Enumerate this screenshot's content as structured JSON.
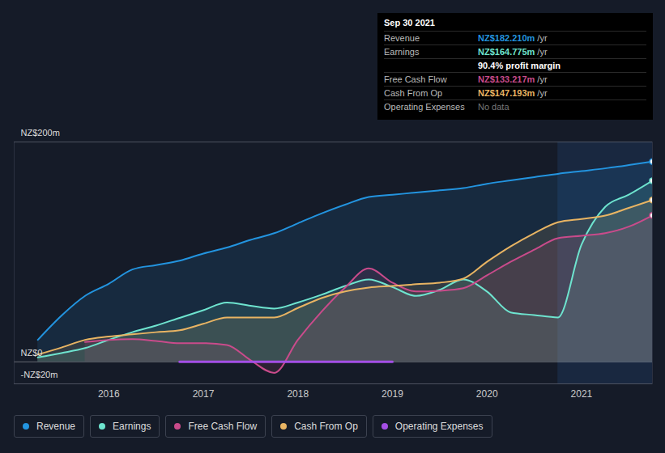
{
  "chart_data": {
    "type": "line",
    "x": [
      2015.25,
      2015.5,
      2015.75,
      2016.0,
      2016.25,
      2016.5,
      2016.75,
      2017.0,
      2017.25,
      2017.5,
      2017.75,
      2018.0,
      2018.25,
      2018.5,
      2018.75,
      2019.0,
      2019.25,
      2019.5,
      2019.75,
      2020.0,
      2020.25,
      2020.5,
      2020.75,
      2021.0,
      2021.25,
      2021.5,
      2021.75
    ],
    "series": [
      {
        "name": "Revenue",
        "color": "#2394df",
        "values": [
          20,
          42,
          60,
          71,
          84,
          88,
          92,
          98.5,
          104,
          111,
          117,
          126,
          135,
          143,
          150,
          152,
          154,
          156,
          158,
          162,
          165,
          168,
          171,
          173.5,
          176,
          179,
          182.21
        ]
      },
      {
        "name": "Earnings",
        "color": "#6ee4cf",
        "values": [
          4,
          8,
          12.5,
          20,
          27,
          33,
          40,
          47,
          54,
          51,
          48.5,
          54,
          61,
          69,
          75,
          68,
          60,
          65.5,
          75,
          64,
          45,
          42.6,
          40.4,
          106.6,
          141,
          152,
          164.775
        ]
      },
      {
        "name": "Free Cash Flow",
        "color": "#c94b8b",
        "values": [
          null,
          null,
          18,
          20,
          20.6,
          19,
          17,
          17,
          15.4,
          1.5,
          -10,
          20,
          45.6,
          67.6,
          85,
          72,
          64,
          64.7,
          67,
          78.7,
          91,
          102,
          112.5,
          114.7,
          117,
          123,
          133.217
        ]
      },
      {
        "name": "Cash From Op",
        "color": "#e8b463",
        "values": [
          6.6,
          13,
          20,
          23,
          25,
          27,
          28.7,
          34.6,
          40.4,
          40.4,
          40.4,
          49,
          58,
          64,
          67.6,
          69,
          70.6,
          72,
          75.7,
          91,
          105,
          117,
          127,
          130,
          133,
          140,
          147.193
        ]
      },
      {
        "name": "Operating Expenses",
        "color": "#a44fe6",
        "values": [
          null,
          null,
          null,
          null,
          null,
          null,
          0,
          0,
          0,
          0,
          0,
          0,
          0,
          0,
          0,
          0,
          null,
          null,
          null,
          null,
          null,
          null,
          null,
          null,
          null,
          null,
          null
        ]
      }
    ],
    "xlim": [
      2015.0,
      2021.75
    ],
    "xticks": [
      2016,
      2017,
      2018,
      2019,
      2020,
      2021
    ],
    "ylim": [
      -20,
      200
    ],
    "yticks": [
      {
        "value": 200,
        "label": "NZ$200m"
      },
      {
        "value": 0,
        "label": "NZ$0"
      },
      {
        "value": -20,
        "label": "-NZ$20m"
      }
    ],
    "grid": true,
    "annotations": {
      "shaded_region": {
        "x": [
          2020.75,
          2021.75
        ]
      },
      "tooltip": {
        "date": "Sep 30 2021",
        "rows": [
          {
            "label": "Revenue",
            "value": "NZ$182.210m",
            "unit": "/yr"
          },
          {
            "label": "Earnings",
            "value": "NZ$164.775m",
            "unit": "/yr"
          },
          {
            "value": "90.4%",
            "unit": "profit margin"
          },
          {
            "label": "Free Cash Flow",
            "value": "NZ$133.217m",
            "unit": "/yr"
          },
          {
            "label": "Cash From Op",
            "value": "NZ$147.193m",
            "unit": "/yr"
          },
          {
            "label": "Operating Expenses",
            "value": "No data"
          }
        ]
      }
    }
  }
}
